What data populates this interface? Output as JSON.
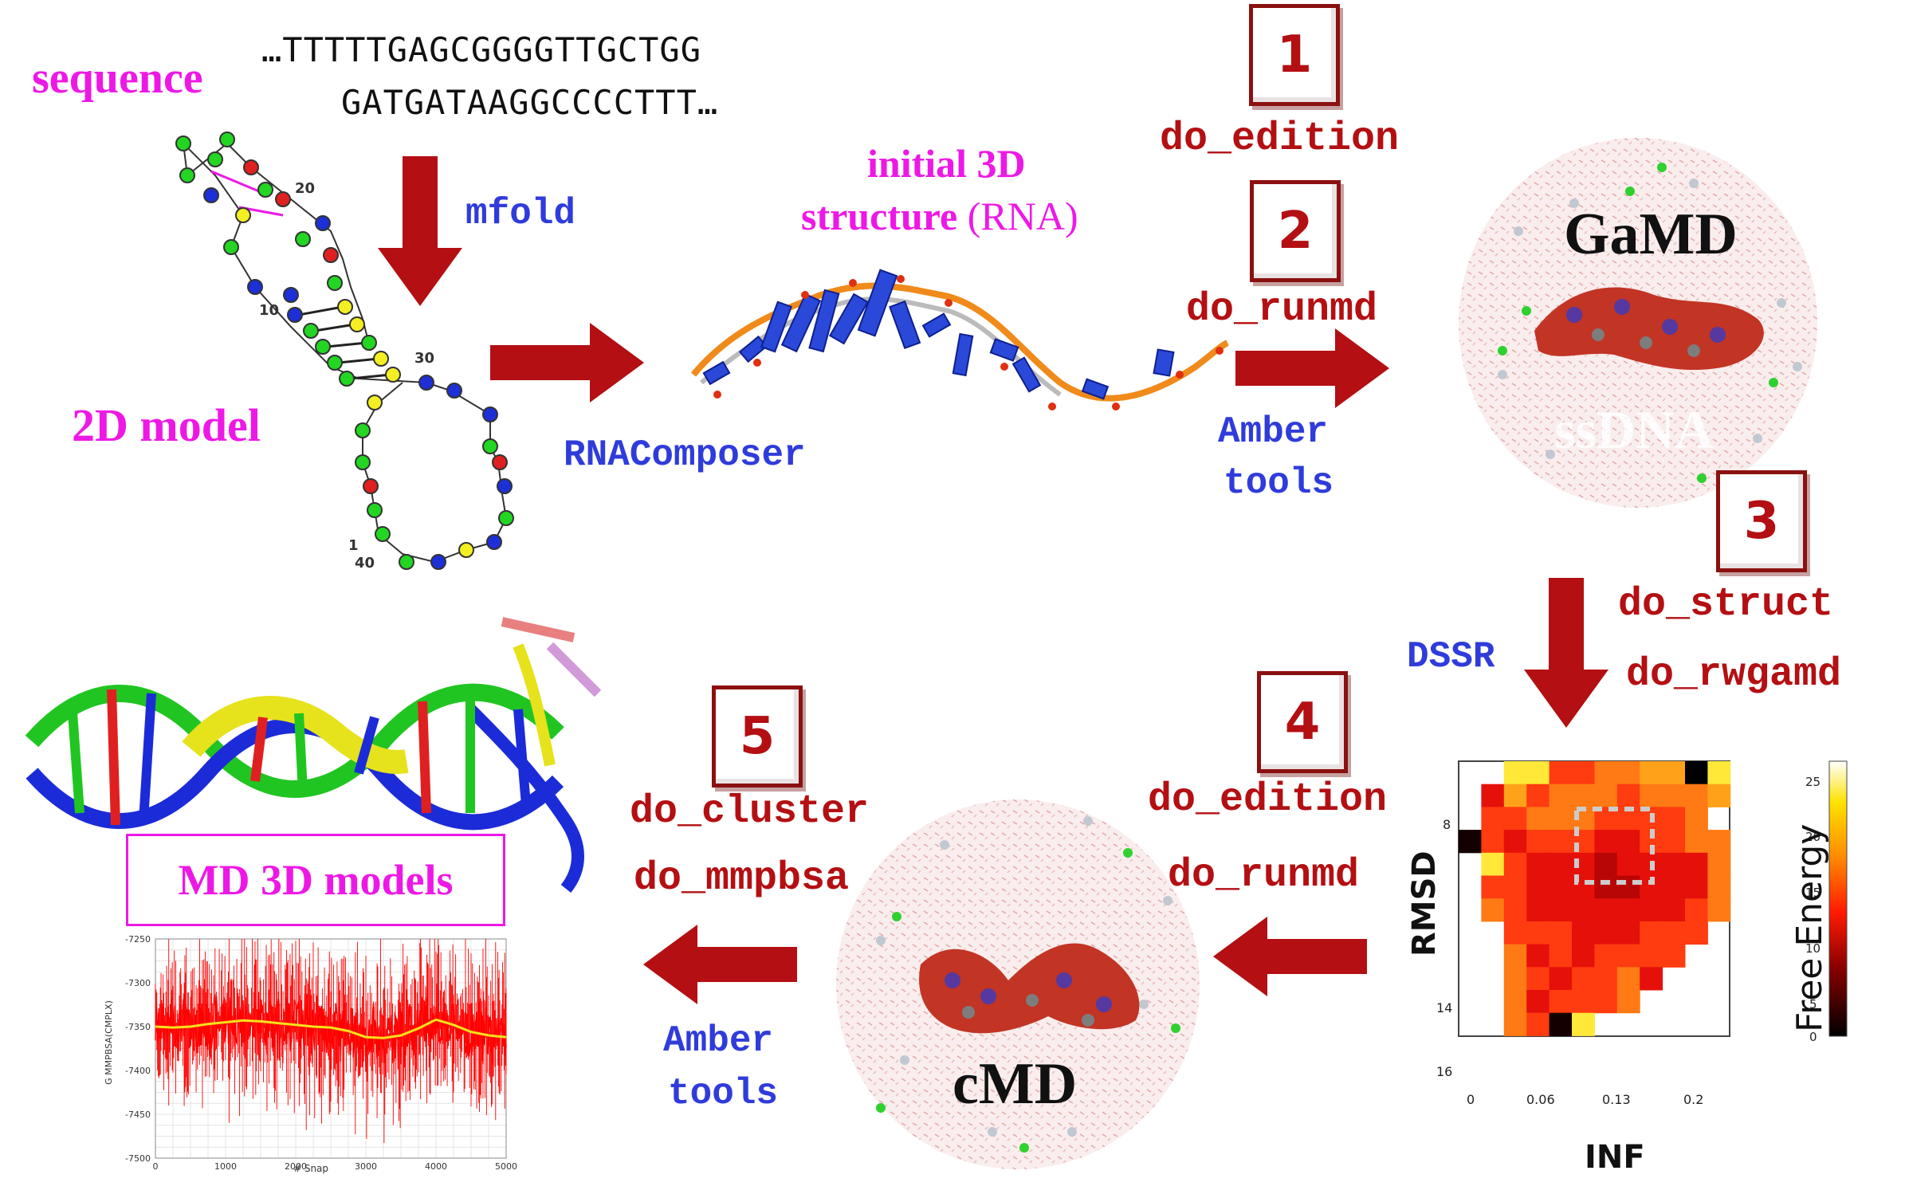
{
  "sequence": {
    "label": "sequence",
    "line1": "…TTTTTGAGCGGGGTTGCTGG",
    "line2": "GATGATAAGGCCCCTTT…"
  },
  "tools": {
    "mfold": "mfold",
    "rnacomposer": "RNAComposer",
    "amber_top_1": "Amber",
    "amber_top_2": "tools",
    "dssr": "DSSR",
    "amber_bottom_1": "Amber",
    "amber_bottom_2": "tools"
  },
  "labels": {
    "model2d": "2D model",
    "initial3d_1": "initial 3D",
    "initial3d_2a": "structure",
    "initial3d_2b": "(RNA)",
    "gamd": "GaMD",
    "ssdna": "ssDNA",
    "cmd": "cMD",
    "md_models": "MD 3D models"
  },
  "steps": [
    {
      "number": "1",
      "commands": [
        "do_edition"
      ]
    },
    {
      "number": "2",
      "commands": [
        "do_runmd"
      ]
    },
    {
      "number": "3",
      "commands": [
        "do_struct",
        "do_rwgamd"
      ]
    },
    {
      "number": "4",
      "commands": [
        "do_edition",
        "do_runmd"
      ]
    },
    {
      "number": "5",
      "commands": [
        "do_cluster",
        "do_mmpbsa"
      ]
    }
  ],
  "secondary_structure": {
    "numbers": [
      "20",
      "10",
      "30",
      "1",
      "40"
    ]
  },
  "heatmap": {
    "xlabel": "INF",
    "ylabel": "RMSD",
    "xticks": [
      "0",
      "0.06",
      "0.13",
      "0.2"
    ],
    "yticks": [
      "8",
      "14",
      "16"
    ],
    "colorbar_label": "Free Energy",
    "colorbar_ticks": [
      "25",
      "20",
      "15",
      "10",
      "5",
      "0"
    ]
  },
  "chart_data": {
    "type": "line",
    "ylabel": "G MMPBSA(CMPLX)",
    "xlabel": "# Snap",
    "xlim": [
      0,
      5000
    ],
    "ylim": [
      -7500,
      -7250
    ],
    "xticks": [
      "0",
      "1000",
      "2000",
      "3000",
      "4000",
      "5000"
    ],
    "yticks": [
      "-7250",
      "-7300",
      "-7350",
      "-7400",
      "-7450",
      "-7500"
    ],
    "series": [
      {
        "color": "#ff0000",
        "x": [
          0,
          500,
          1000,
          1500,
          2000,
          2500,
          3000,
          3500,
          4000,
          4500,
          5000
        ],
        "y": [
          -7350,
          -7350,
          -7345,
          -7343,
          -7348,
          -7350,
          -7362,
          -7360,
          -7342,
          -7355,
          -7362
        ]
      },
      {
        "color": "#f2e21a",
        "x": [
          0,
          250,
          500,
          750,
          1000,
          1250,
          1500,
          1750,
          2000,
          2250,
          2500,
          2750,
          3000,
          3250,
          3500,
          3750,
          4000,
          4250,
          4500,
          4750,
          5000
        ],
        "y": [
          -7350,
          -7351,
          -7350,
          -7347,
          -7345,
          -7343,
          -7344,
          -7346,
          -7348,
          -7350,
          -7351,
          -7355,
          -7362,
          -7363,
          -7360,
          -7352,
          -7342,
          -7348,
          -7356,
          -7360,
          -7362
        ]
      }
    ]
  }
}
